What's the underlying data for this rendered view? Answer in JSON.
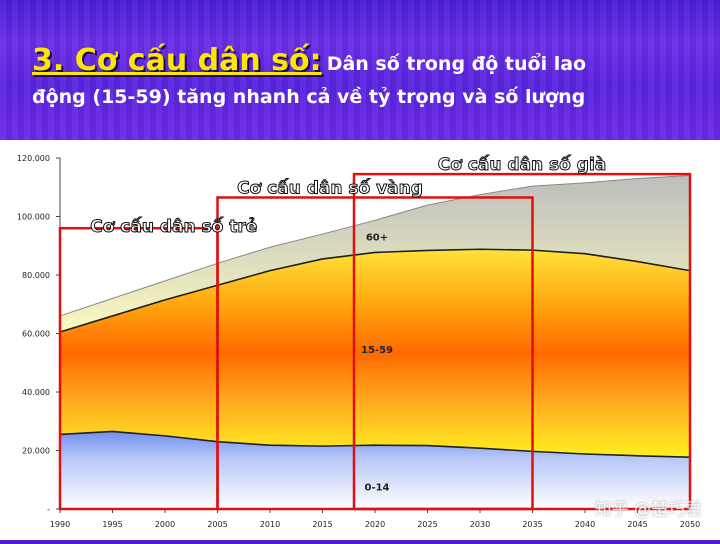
{
  "title": {
    "heading": "3. Cơ cấu dân số:",
    "subtitle_part1": "Dân số trong độ tuổi lao",
    "subtitle_part2": "động (15-59) tăng nhanh cả về tỷ trọng và số lượng"
  },
  "watermark": "知乎 @楚巧君",
  "colors": {
    "accent_title": "#ffe600",
    "frame_red": "#e01010"
  },
  "chart_data": {
    "type": "area",
    "stacked": true,
    "x": [
      1990,
      1995,
      2000,
      2005,
      2010,
      2015,
      2020,
      2025,
      2030,
      2035,
      2040,
      2045,
      2050
    ],
    "x_tick_labels": [
      "1990",
      "1995",
      "2000",
      "2005",
      "2010",
      "2015",
      "2020",
      "2025",
      "2030",
      "2035",
      "2040",
      "2045",
      "2050"
    ],
    "y_tick_labels": [
      "-",
      "20.000",
      "40.000",
      "60.000",
      "80.000",
      "100.000",
      "120.000"
    ],
    "ylim": [
      0,
      120000
    ],
    "series": [
      {
        "name": "0-14",
        "values": [
          25500,
          26500,
          25000,
          23000,
          21800,
          21500,
          21800,
          21700,
          20800,
          19700,
          18800,
          18200,
          17700
        ]
      },
      {
        "name": "15-59",
        "values": [
          35000,
          39500,
          46500,
          53500,
          59700,
          64000,
          65900,
          66700,
          68000,
          68800,
          68500,
          66400,
          63800
        ]
      },
      {
        "name": "60+",
        "values": [
          5500,
          6000,
          6500,
          7500,
          8000,
          8500,
          11000,
          15500,
          18700,
          21900,
          24200,
          28400,
          32500
        ]
      }
    ],
    "annotations": [
      {
        "text": "Cơ cấu dân số trẻ",
        "from": 1990,
        "to": 2005,
        "top": 96000
      },
      {
        "text": "Cơ cấu dân số vàng",
        "from": 2005,
        "to": 2035,
        "top": 106500
      },
      {
        "text": "Cơ cấu dân số già",
        "from": 2018,
        "to": 2050,
        "top": 114500
      }
    ],
    "grid": false
  }
}
